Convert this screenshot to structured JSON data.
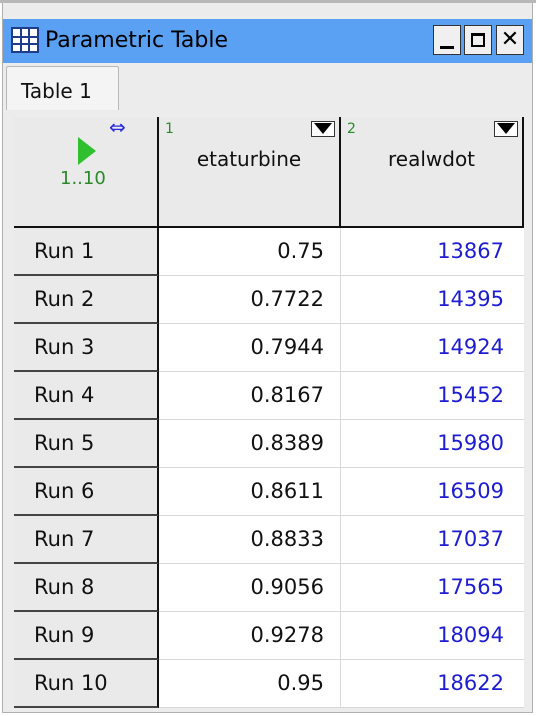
{
  "window": {
    "title": "Parametric Table"
  },
  "tabs": [
    {
      "label": "Table 1"
    }
  ],
  "table": {
    "range": "1..10",
    "columns": [
      {
        "number": "1",
        "name": "etaturbine"
      },
      {
        "number": "2",
        "name": "realwdot"
      }
    ],
    "rows": [
      {
        "label": "Run 1",
        "etaturbine": "0.75",
        "realwdot": "13867"
      },
      {
        "label": "Run 2",
        "etaturbine": "0.7722",
        "realwdot": "14395"
      },
      {
        "label": "Run 3",
        "etaturbine": "0.7944",
        "realwdot": "14924"
      },
      {
        "label": "Run 4",
        "etaturbine": "0.8167",
        "realwdot": "15452"
      },
      {
        "label": "Run 5",
        "etaturbine": "0.8389",
        "realwdot": "15980"
      },
      {
        "label": "Run 6",
        "etaturbine": "0.8611",
        "realwdot": "16509"
      },
      {
        "label": "Run 7",
        "etaturbine": "0.8833",
        "realwdot": "17037"
      },
      {
        "label": "Run 8",
        "etaturbine": "0.9056",
        "realwdot": "17565"
      },
      {
        "label": "Run 9",
        "etaturbine": "0.9278",
        "realwdot": "18094"
      },
      {
        "label": "Run 10",
        "etaturbine": "0.95",
        "realwdot": "18622"
      }
    ]
  },
  "icons": {
    "app": "table-icon",
    "minimize": "minimize-icon",
    "maximize": "maximize-icon",
    "close": "close-icon",
    "run": "play-icon",
    "resize": "resize-columns-icon",
    "column_menu": "dropdown-arrow-icon"
  },
  "colors": {
    "titlebar": "#5aa0f3",
    "calculated_value": "#1c1cd0",
    "play": "#2fbf2f",
    "range_text": "#2a8a2a"
  }
}
